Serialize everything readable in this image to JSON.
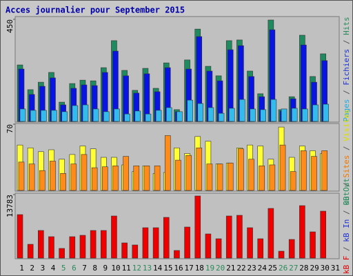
{
  "chart_data": {
    "type": "bar",
    "title": "Acces journalier pour September 2015",
    "categories": [
      "1",
      "2",
      "3",
      "4",
      "5",
      "6",
      "7",
      "8",
      "9",
      "10",
      "11",
      "12",
      "13",
      "14",
      "15",
      "16",
      "17",
      "18",
      "19",
      "20",
      "21",
      "22",
      "23",
      "24",
      "25",
      "26",
      "27",
      "28",
      "29",
      "30",
      "31"
    ],
    "category_colors": [
      "#000000",
      "#000000",
      "#000000",
      "#000000",
      "#2a8a5a",
      "#2a8a5a",
      "#000000",
      "#000000",
      "#000000",
      "#000000",
      "#000000",
      "#2a8a5a",
      "#2a8a5a",
      "#000000",
      "#000000",
      "#000000",
      "#000000",
      "#000000",
      "#2a8a5a",
      "#2a8a5a",
      "#000000",
      "#000000",
      "#000000",
      "#000000",
      "#000000",
      "#2a8a5a",
      "#2a8a5a",
      "#000000",
      "#000000",
      "#000000",
      "#000000"
    ],
    "legend_separator": " / ",
    "panels": [
      {
        "ylim": [
          0,
          450
        ],
        "yticks": [
          450
        ],
        "legend": [
          {
            "text": "Pages",
            "color": "#22aadd"
          },
          {
            "text": "Fichiers",
            "color": "#2233cc"
          },
          {
            "text": "Hits",
            "color": "#2a8a5a"
          }
        ],
        "series": [
          {
            "color": "#1f8a5f",
            "values": [
              249,
              140,
              173,
              216,
              85,
              167,
              182,
              179,
              237,
              356,
              225,
              137,
              234,
              146,
              258,
              52,
              271,
              407,
              243,
              201,
              356,
              359,
              222,
              122,
              447,
              52,
              109,
              380,
              198,
              298,
              0
            ]
          },
          {
            "color": "#0a14e0",
            "values": [
              231,
              119,
              155,
              192,
              73,
              146,
              161,
              158,
              216,
              310,
              201,
              125,
              210,
              131,
              237,
              43,
              231,
              374,
              222,
              179,
              316,
              334,
              198,
              109,
              404,
              46,
              100,
              337,
              173,
              268,
              0
            ]
          },
          {
            "color": "#33bbee",
            "values": [
              55,
              49,
              49,
              49,
              43,
              70,
              73,
              55,
              43,
              55,
              33,
              46,
              33,
              49,
              61,
              43,
              94,
              79,
              61,
              36,
              58,
              97,
              55,
              52,
              97,
              55,
              58,
              55,
              73,
              76,
              0
            ]
          }
        ]
      },
      {
        "ylim": [
          0,
          70
        ],
        "yticks": [
          70
        ],
        "legend": [
          {
            "text": "Out",
            "color": "#2a8a5a"
          },
          {
            "text": "Sites",
            "color": "#ee7700"
          },
          {
            "text": "Visites",
            "color": "#dddd00"
          }
        ],
        "series": [
          {
            "color": "#ffff33",
            "values": [
              48,
              45,
              41,
              43,
              33,
              38,
              47,
              44,
              35,
              35,
              27,
              20,
              26,
              18,
              19,
              45,
              39,
              57,
              52,
              28,
              29,
              45,
              48,
              47,
              33,
              67,
              35,
              47,
              42,
              39,
              0
            ]
          },
          {
            "color": "#ff8c1a",
            "values": [
              30,
              28,
              21,
              31,
              18,
              28,
              38,
              24,
              25,
              26,
              36,
              26,
              26,
              26,
              58,
              32,
              37,
              45,
              28,
              28,
              29,
              44,
              33,
              26,
              27,
              48,
              20,
              42,
              36,
              42,
              0
            ]
          }
        ]
      },
      {
        "ylim": [
          0,
          13783
        ],
        "yticks": [
          13783
        ],
        "legend": [
          {
            "text": "kB F",
            "color": "#dd0000"
          },
          {
            "text": "kB In",
            "color": "#2233cc"
          },
          {
            "text": "kB Out",
            "color": "#2a8a5a"
          }
        ],
        "series": [
          {
            "color": "#ee0000",
            "values": [
              9437,
              2996,
              5992,
              4644,
              2097,
              4644,
              4943,
              5992,
              5992,
              9138,
              3296,
              2846,
              6591,
              6591,
              8838,
              1648,
              6741,
              13483,
              5243,
              4195,
              9138,
              9288,
              6591,
              4195,
              10785,
              1498,
              4045,
              11385,
              5692,
              10186,
              0
            ]
          }
        ]
      }
    ]
  }
}
